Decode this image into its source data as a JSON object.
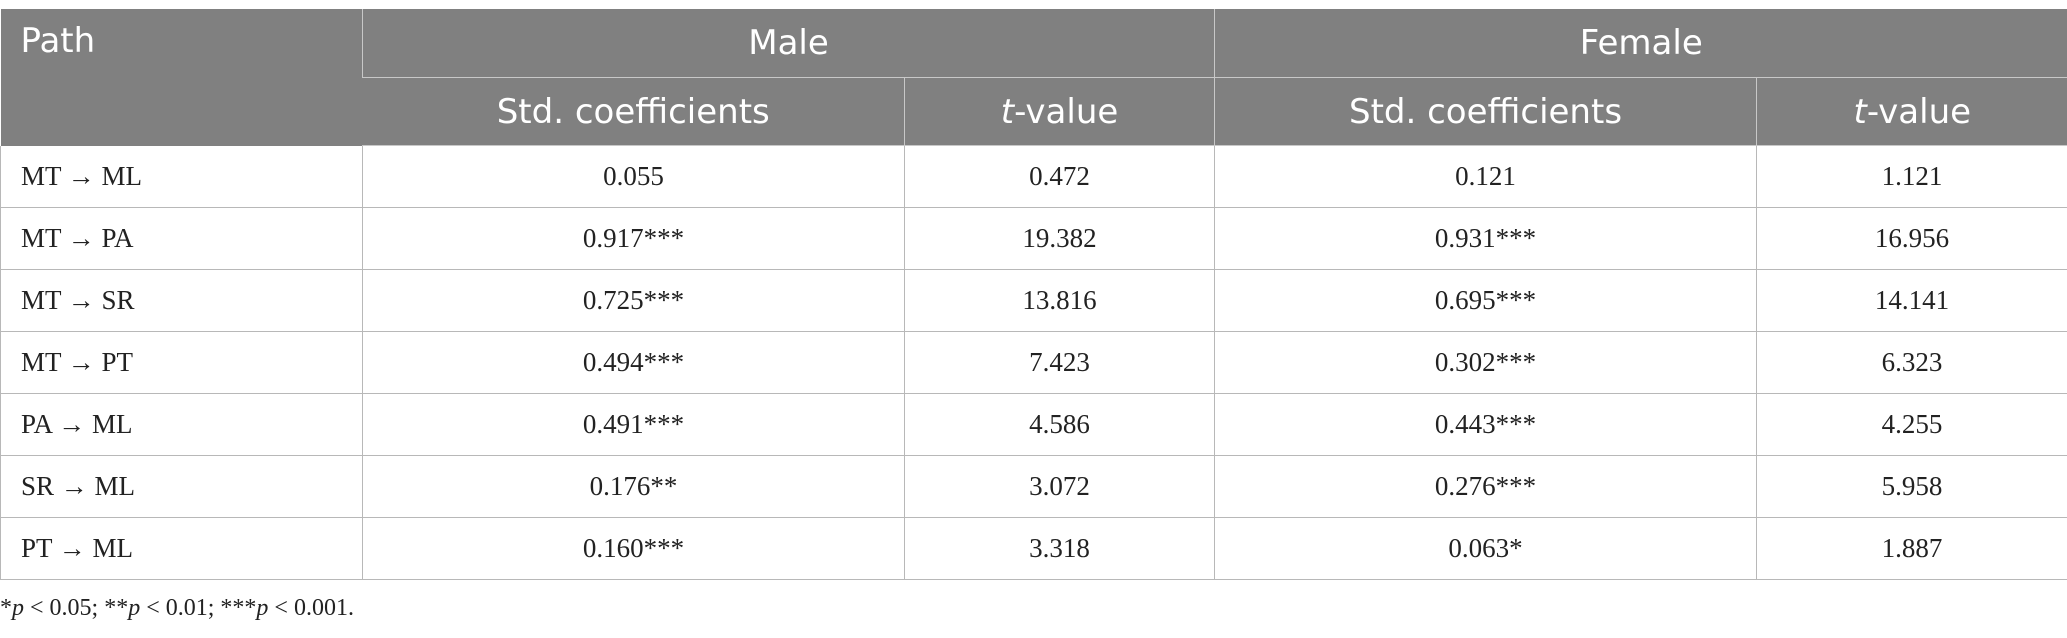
{
  "table": {
    "headers": {
      "path": "Path",
      "male": "Male",
      "female": "Female",
      "std_coef": "Std. coefficients",
      "t_italic": "t",
      "t_rest": "-value"
    },
    "rows": [
      {
        "path": "MT → ML",
        "male_coef": "0.055",
        "male_t": "0.472",
        "female_coef": "0.121",
        "female_t": "1.121"
      },
      {
        "path": "MT → PA",
        "male_coef": "0.917***",
        "male_t": "19.382",
        "female_coef": "0.931***",
        "female_t": "16.956"
      },
      {
        "path": "MT → SR",
        "male_coef": "0.725***",
        "male_t": "13.816",
        "female_coef": "0.695***",
        "female_t": "14.141"
      },
      {
        "path": "MT → PT",
        "male_coef": "0.494***",
        "male_t": "7.423",
        "female_coef": "0.302***",
        "female_t": "6.323"
      },
      {
        "path": "PA → ML",
        "male_coef": "0.491***",
        "male_t": "4.586",
        "female_coef": "0.443***",
        "female_t": "4.255"
      },
      {
        "path": "SR → ML",
        "male_coef": "0.176**",
        "male_t": "3.072",
        "female_coef": "0.276***",
        "female_t": "5.958"
      },
      {
        "path": "PT → ML",
        "male_coef": "0.160***",
        "male_t": "3.318",
        "female_coef": "0.063*",
        "female_t": "1.887"
      }
    ]
  },
  "footnote": {
    "p1_prefix": "*",
    "p_symbol": "p",
    "p1_rest": " < 0.05; **",
    "p2_rest": " < 0.01; ***",
    "p3_rest": " < 0.001."
  }
}
